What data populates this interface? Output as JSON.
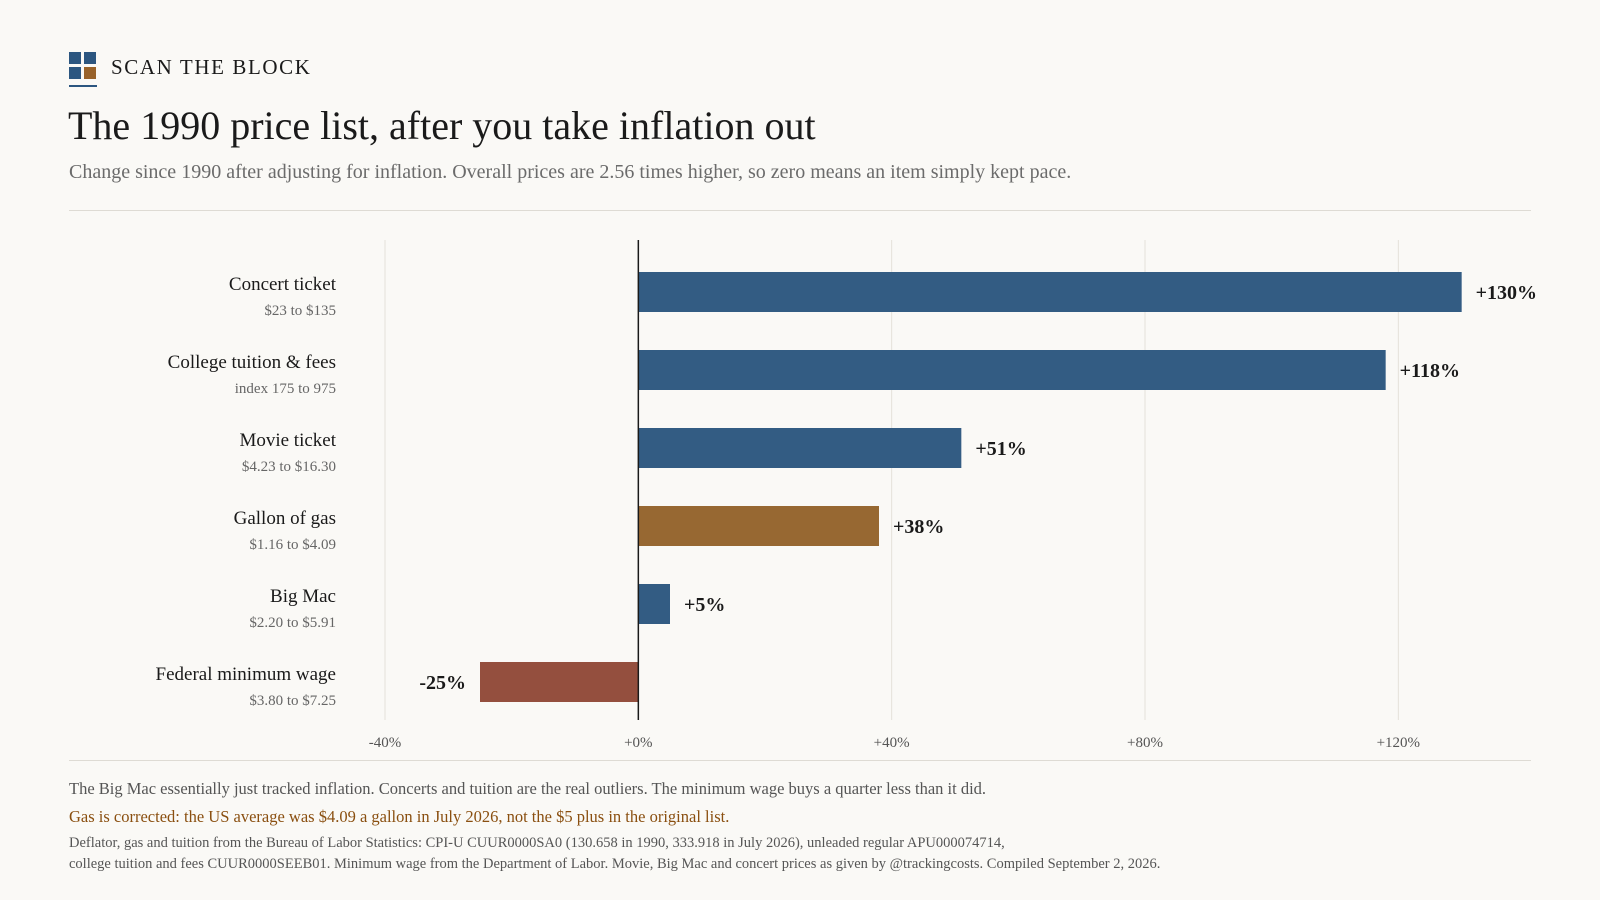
{
  "brand": {
    "name": "SCAN THE BLOCK"
  },
  "title": "The 1990 price list, after you take inflation out",
  "subtitle": "Change since 1990 after adjusting for inflation. Overall prices are 2.56 times higher, so zero means an item simply kept pace.",
  "colors": {
    "blue": "#335c83",
    "gold": "#976832",
    "red": "#944f3e",
    "logo_blue": "#2c5680",
    "logo_brown": "#98622a",
    "gridline": "#e4e1da",
    "axis": "#1a1a1a"
  },
  "chart_data": {
    "type": "bar",
    "orientation": "horizontal",
    "title": "",
    "xlabel": "",
    "ylabel": "",
    "xlim": [
      -40,
      140
    ],
    "xticks": [
      -40,
      0,
      40,
      80,
      120
    ],
    "xtick_labels": [
      "-40%",
      "+0%",
      "+40%",
      "+80%",
      "+120%"
    ],
    "grid": true,
    "legend": "none",
    "categories": [
      "Concert ticket",
      "College tuition & fees",
      "Movie ticket",
      "Gallon of gas",
      "Big Mac",
      "Federal minimum wage"
    ],
    "sublabels": [
      "$23 to $135",
      "index 175 to 975",
      "$4.23 to $16.30",
      "$1.16 to $4.09",
      "$2.20 to $5.91",
      "$3.80 to $7.25"
    ],
    "values": [
      130,
      118,
      51,
      38,
      5,
      -25
    ],
    "value_labels": [
      "+130%",
      "+118%",
      "+51%",
      "+38%",
      "+5%",
      "-25%"
    ],
    "bar_colors": [
      "#335c83",
      "#335c83",
      "#335c83",
      "#976832",
      "#335c83",
      "#944f3e"
    ]
  },
  "footer": {
    "note": "The Big Mac essentially just tracked inflation. Concerts and tuition are the real outliers. The minimum wage buys a quarter less than it did.",
    "correction": "Gas is corrected: the US average was $4.09 a gallon in July 2026, not the $5 plus in the original list.",
    "source_line1": "Deflator, gas and tuition from the Bureau of Labor Statistics: CPI-U CUUR0000SA0 (130.658 in 1990, 333.918 in July 2026), unleaded regular APU000074714,",
    "source_line2": "college tuition and fees CUUR0000SEEB01. Minimum wage from the Department of Labor. Movie, Big Mac and concert prices as given by @trackingcosts. Compiled September 2, 2026."
  }
}
